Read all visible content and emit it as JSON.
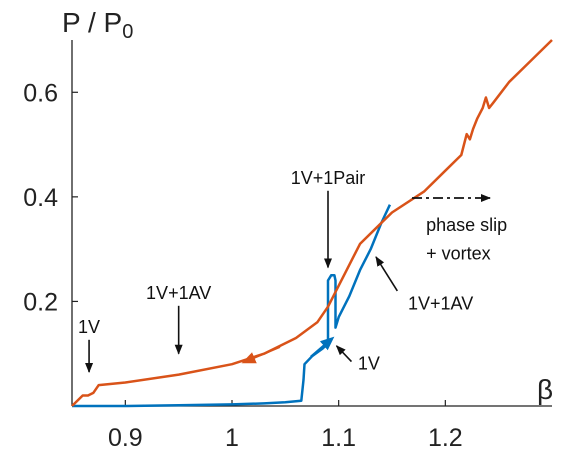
{
  "chart_data": {
    "type": "line",
    "title": "",
    "xlabel": "β",
    "ylabel_main": "P / P",
    "ylabel_sub": "0",
    "xlim": [
      0.85,
      1.3
    ],
    "ylim": [
      0,
      0.7
    ],
    "xticks": [
      0.9,
      1,
      1.1,
      1.2
    ],
    "xtick_labels": [
      "0.9",
      "1",
      "1.1",
      "1.2"
    ],
    "yticks": [
      0.2,
      0.4,
      0.6
    ],
    "ytick_labels": [
      "0.2",
      "0.4",
      "0.6"
    ],
    "grid": false,
    "series": [
      {
        "color": "#0072BD",
        "x": [
          0.85,
          0.9,
          0.95,
          1.0,
          1.03,
          1.05,
          1.065,
          1.067,
          1.068,
          1.075,
          1.085,
          1.09,
          1.09,
          1.093,
          1.096,
          1.097,
          1.097,
          1.1,
          1.11,
          1.12,
          1.13,
          1.14,
          1.148
        ],
        "y": [
          0.0,
          0.0,
          0.0015,
          0.003,
          0.005,
          0.007,
          0.01,
          0.05,
          0.08,
          0.095,
          0.11,
          0.12,
          0.24,
          0.25,
          0.25,
          0.24,
          0.15,
          0.17,
          0.21,
          0.26,
          0.3,
          0.35,
          0.385
        ]
      },
      {
        "color": "#D95319",
        "x": [
          0.85,
          0.86,
          0.865,
          0.87,
          0.875,
          0.9,
          0.95,
          1.0,
          1.03,
          1.06,
          1.08,
          1.09,
          1.1,
          1.12,
          1.15,
          1.18,
          1.2,
          1.215,
          1.22,
          1.223,
          1.226,
          1.23,
          1.235,
          1.238,
          1.241,
          1.245,
          1.26,
          1.28,
          1.3
        ],
        "y": [
          0.0,
          0.02,
          0.02,
          0.025,
          0.04,
          0.045,
          0.06,
          0.08,
          0.1,
          0.13,
          0.16,
          0.19,
          0.23,
          0.31,
          0.37,
          0.41,
          0.45,
          0.48,
          0.52,
          0.51,
          0.53,
          0.55,
          0.57,
          0.59,
          0.57,
          0.58,
          0.62,
          0.66,
          0.7
        ]
      }
    ],
    "annotations": [
      {
        "text": "1V",
        "x": 0.866,
        "y": 0.14,
        "arrow_to": [
          0.866,
          0.065
        ]
      },
      {
        "text": "1V+1AV",
        "x": 0.95,
        "y": 0.205,
        "arrow_to": [
          0.95,
          0.1
        ]
      },
      {
        "text": "1V+1Pair",
        "x": 1.09,
        "y": 0.425,
        "arrow_to": [
          1.09,
          0.265
        ]
      },
      {
        "text": "phase slip",
        "x": 1.182,
        "y": 0.335
      },
      {
        "text": "+ vortex",
        "x": 1.182,
        "y": 0.28
      },
      {
        "text": "1V+1AV",
        "x": 1.165,
        "y": 0.185
      },
      {
        "text": "1V",
        "x": 1.118,
        "y": 0.07
      }
    ]
  }
}
